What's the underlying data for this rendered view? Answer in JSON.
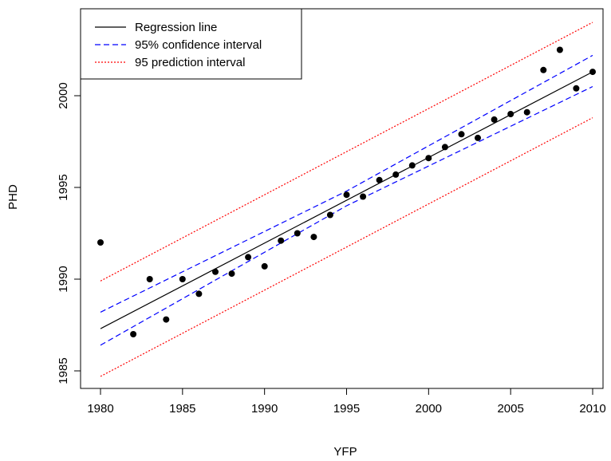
{
  "chart_data": {
    "type": "scatter",
    "xlabel": "YFP",
    "ylabel": "PHD",
    "xlim": [
      1979.3,
      2010.9
    ],
    "ylim": [
      1983.4,
      2004.5
    ],
    "x_ticks": [
      1980,
      1985,
      1990,
      1995,
      2000,
      2005,
      2010
    ],
    "y_ticks": [
      1985,
      1990,
      1995,
      2000
    ],
    "grid": false,
    "legend_position": "top-left",
    "legend": [
      {
        "label": "Regression line",
        "style": "solid",
        "color": "#000000"
      },
      {
        "label": "95% confidence interval",
        "style": "dashed",
        "color": "#0000ff"
      },
      {
        "label": "95 prediction interval",
        "style": "dotted",
        "color": "#ff0000"
      }
    ],
    "points": {
      "x": [
        1980,
        1982,
        1983,
        1984,
        1985,
        1986,
        1987,
        1988,
        1989,
        1990,
        1991,
        1992,
        1993,
        1994,
        1995,
        1996,
        1997,
        1998,
        1999,
        2000,
        2001,
        2002,
        2003,
        2004,
        2005,
        2006,
        2007,
        2008,
        2009,
        2010
      ],
      "y": [
        1992.0,
        1987.0,
        1990.0,
        1987.8,
        1990.0,
        1989.2,
        1990.4,
        1990.3,
        1991.2,
        1990.7,
        1992.1,
        1992.5,
        1992.3,
        1993.5,
        1994.6,
        1994.5,
        1995.4,
        1995.7,
        1996.2,
        1996.6,
        1997.2,
        1997.9,
        1997.7,
        1998.7,
        1999.0,
        1999.1,
        2001.4,
        2002.5,
        2000.4,
        2001.3
      ]
    },
    "series": [
      {
        "name": "Regression line",
        "x": [
          1980,
          2010
        ],
        "y": [
          1987.3,
          2001.3
        ]
      },
      {
        "name": "95% confidence interval (upper)",
        "x": [
          1980,
          1995,
          2010
        ],
        "y": [
          1988.2,
          1994.8,
          2002.2
        ]
      },
      {
        "name": "95% confidence interval (lower)",
        "x": [
          1980,
          1995,
          2010
        ],
        "y": [
          1986.4,
          1994.0,
          2000.5
        ]
      },
      {
        "name": "95 prediction interval (upper)",
        "x": [
          1980,
          2010
        ],
        "y": [
          1989.9,
          2004.0
        ]
      },
      {
        "name": "95 prediction interval (lower)",
        "x": [
          1980,
          2010
        ],
        "y": [
          1984.7,
          1998.8
        ]
      }
    ]
  }
}
